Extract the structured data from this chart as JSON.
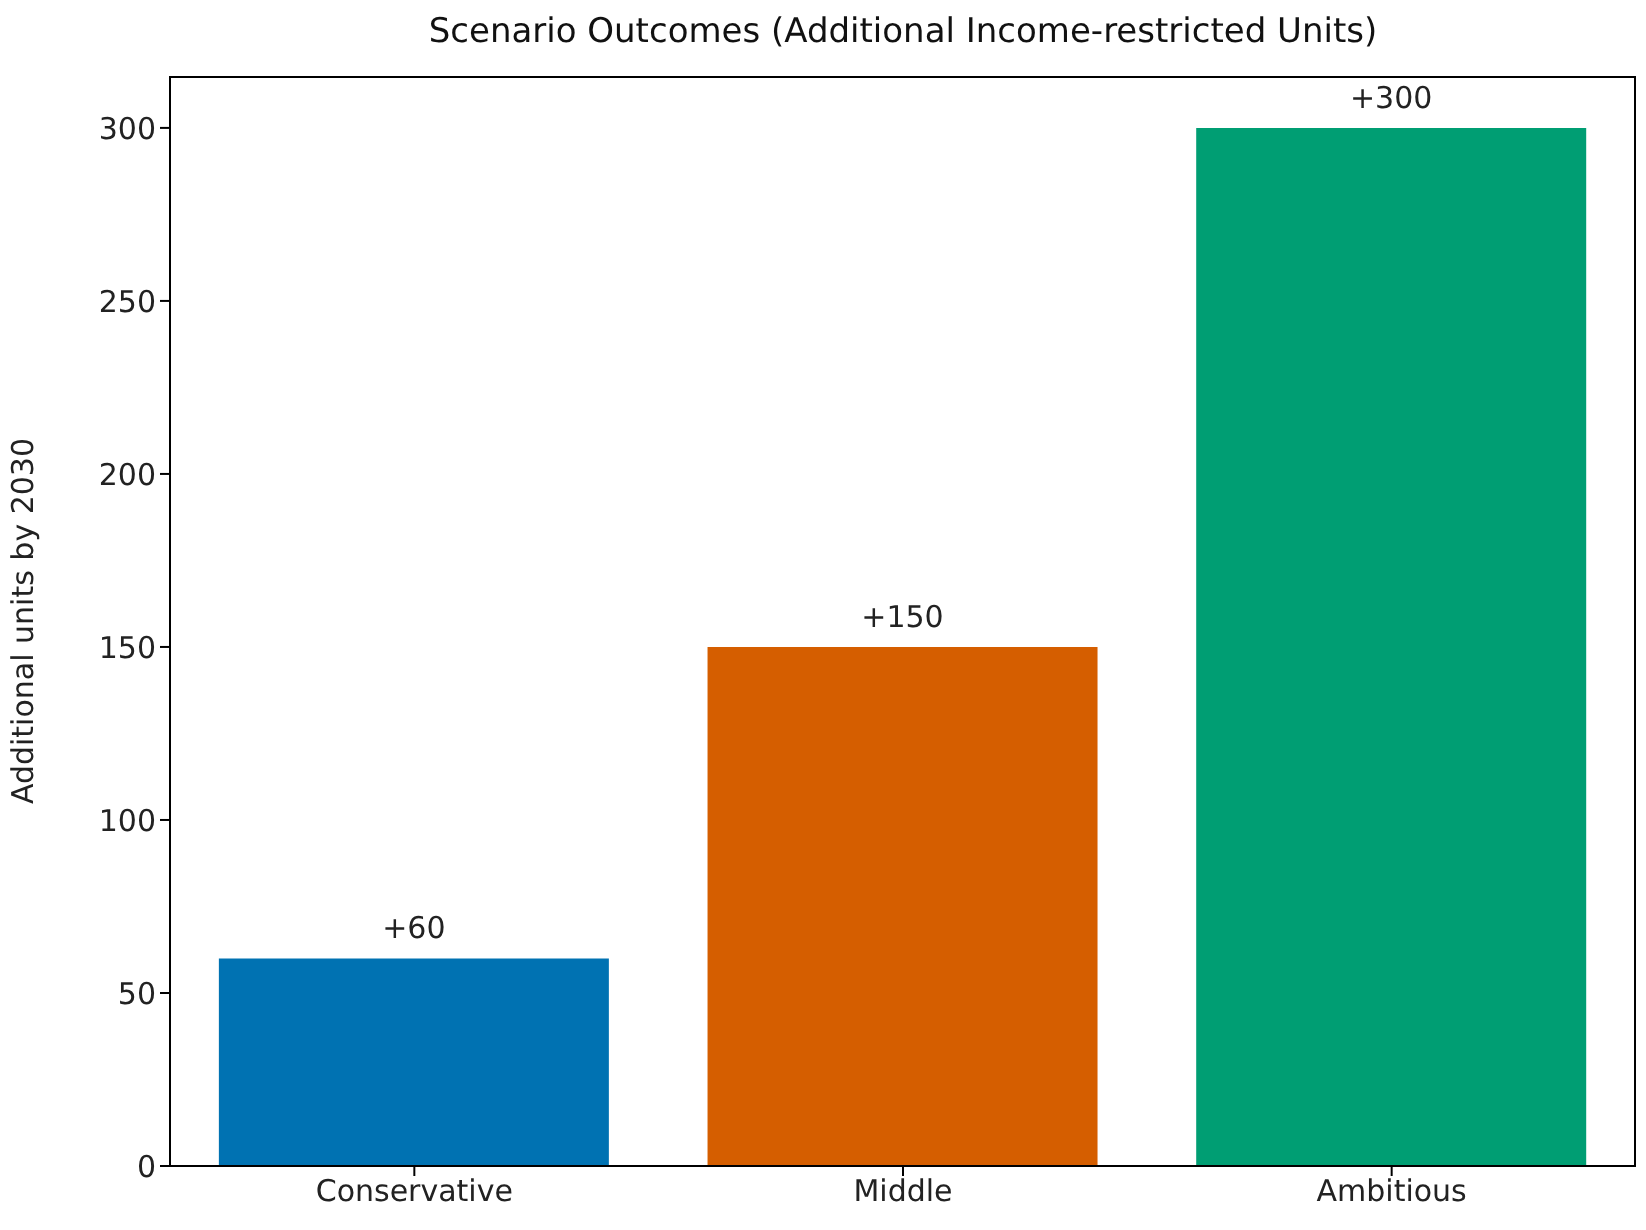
{
  "chart_data": {
    "type": "bar",
    "title": "Scenario Outcomes (Additional Income-restricted Units)",
    "ylabel": "Additional units by 2030",
    "categories": [
      "Conservative",
      "Middle",
      "Ambitious"
    ],
    "values": [
      60,
      150,
      300
    ],
    "colors": [
      "#0072b2",
      "#d55e00",
      "#009e73"
    ],
    "value_labels": [
      "+60",
      "+150",
      "+300"
    ],
    "ylim": [
      0,
      315
    ],
    "yticks": [
      0,
      50,
      100,
      150,
      200,
      250,
      300
    ],
    "grid": false
  }
}
